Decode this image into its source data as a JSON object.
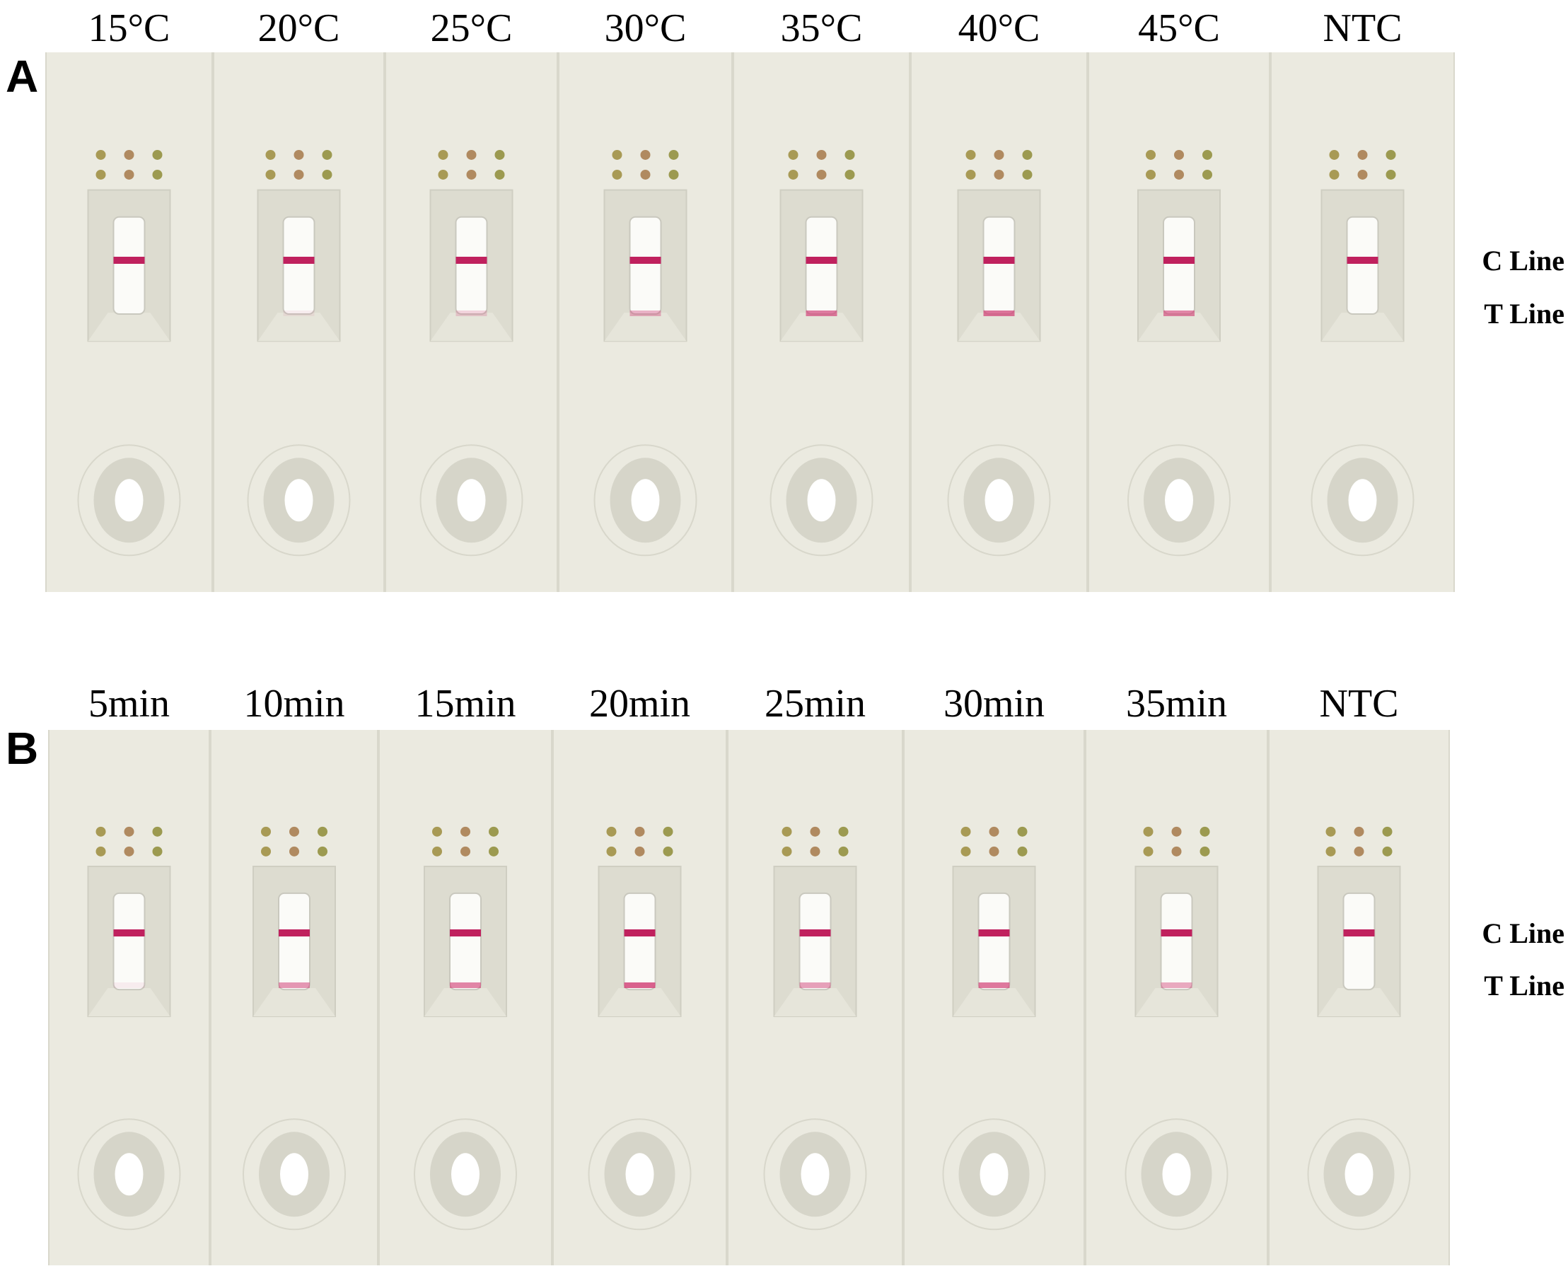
{
  "panels": [
    {
      "label": "A",
      "columns": [
        "15°C",
        "20°C",
        "25°C",
        "30°C",
        "35°C",
        "40°C",
        "45°C",
        "NTC"
      ],
      "annotations": [
        "C Line",
        "T Line"
      ]
    },
    {
      "label": "B",
      "columns": [
        "5min",
        "10min",
        "15min",
        "20min",
        "25min",
        "30min",
        "35min",
        "NTC"
      ],
      "annotations": [
        "C Line",
        "T Line"
      ]
    }
  ]
}
